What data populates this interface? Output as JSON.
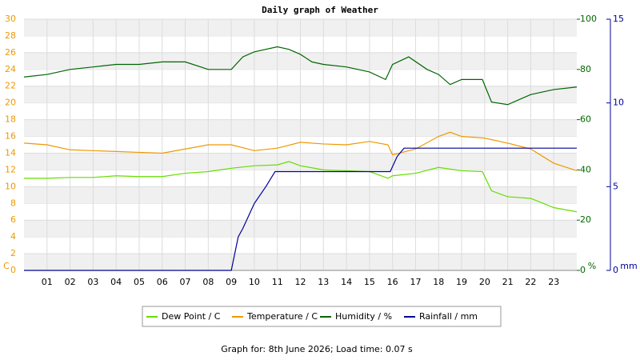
{
  "chart_data": {
    "type": "line",
    "title": "Daily graph of Weather",
    "footer": "Graph for: 8th June 2026; Load time: 0.07 s",
    "ylabel": "C",
    "y2label": "%",
    "y3label": "mm",
    "xlim": [
      0,
      24
    ],
    "xticks": [
      {
        "value": 1,
        "label": "01"
      },
      {
        "value": 2,
        "label": "02"
      },
      {
        "value": 3,
        "label": "03"
      },
      {
        "value": 4,
        "label": "04"
      },
      {
        "value": 5,
        "label": "05"
      },
      {
        "value": 6,
        "label": "06"
      },
      {
        "value": 7,
        "label": "07"
      },
      {
        "value": 8,
        "label": "08"
      },
      {
        "value": 9,
        "label": "09"
      },
      10,
      11,
      12,
      13,
      14,
      15,
      16,
      17,
      18,
      19,
      20,
      21,
      22,
      23
    ],
    "ylim": [
      0,
      30
    ],
    "yticks": [
      0,
      2,
      4,
      6,
      8,
      10,
      12,
      14,
      16,
      18,
      20,
      22,
      24,
      26,
      28,
      30
    ],
    "y2lim": [
      0,
      100
    ],
    "y2ticks": [
      0,
      20,
      40,
      60,
      80,
      100
    ],
    "y3lim": [
      0,
      15
    ],
    "y3ticks": [
      0,
      5,
      10,
      15
    ],
    "series": [
      {
        "name": "Dew Point / C",
        "color": "#66dd00",
        "axis": "y",
        "x": [
          0,
          1,
          2,
          3,
          4,
          5,
          6,
          7,
          8,
          9,
          10,
          11,
          11.5,
          12,
          13,
          14,
          15,
          15.8,
          16,
          17,
          18,
          19,
          19.9,
          20.3,
          21,
          22,
          23,
          24
        ],
        "values": [
          11,
          11,
          11.1,
          11.1,
          11.3,
          11.2,
          11.2,
          11.6,
          11.8,
          12.2,
          12.5,
          12.6,
          13,
          12.5,
          12,
          11.9,
          11.8,
          11,
          11.3,
          11.6,
          12.3,
          11.9,
          11.8,
          9.5,
          8.8,
          8.6,
          7.5,
          7
        ]
      },
      {
        "name": "Temperature / C",
        "color": "#ee9900",
        "axis": "y",
        "x": [
          0,
          1,
          2,
          3,
          4,
          5,
          6,
          7,
          8,
          9,
          10,
          11,
          12,
          13,
          14,
          15,
          15.8,
          16,
          17,
          18,
          18.5,
          19,
          20,
          21,
          22,
          23,
          24
        ],
        "values": [
          15.2,
          15,
          14.4,
          14.3,
          14.2,
          14.1,
          14,
          14.5,
          15,
          15,
          14.3,
          14.6,
          15.3,
          15.1,
          15,
          15.4,
          15,
          13.8,
          14.5,
          16,
          16.5,
          16,
          15.8,
          15.2,
          14.5,
          12.8,
          11.9
        ]
      },
      {
        "name": "Humidity / %",
        "color": "#006600",
        "axis": "y2",
        "x": [
          0,
          1,
          2,
          3,
          4,
          5,
          6,
          7,
          8,
          9,
          9.5,
          10,
          11,
          11.5,
          12,
          12.5,
          13,
          14,
          15,
          15.7,
          16,
          16.7,
          17.5,
          18,
          18.5,
          19,
          19.9,
          20.3,
          21,
          22,
          23,
          24
        ],
        "values": [
          77,
          78,
          80,
          81,
          82,
          82,
          83,
          83,
          80,
          80,
          85,
          87,
          89,
          88,
          86,
          83,
          82,
          81,
          79,
          76,
          82,
          85,
          80,
          78,
          74,
          76,
          76,
          67,
          66,
          70,
          72,
          73
        ]
      },
      {
        "name": "Rainfall / mm",
        "color": "#000099",
        "axis": "y3",
        "x": [
          0,
          9,
          9.3,
          9.5,
          10,
          10.5,
          10.9,
          15.9,
          16.2,
          16.5,
          24
        ],
        "values": [
          0,
          0,
          2,
          2.5,
          4,
          5,
          5.9,
          5.9,
          6.8,
          7.3,
          7.3
        ]
      }
    ]
  }
}
